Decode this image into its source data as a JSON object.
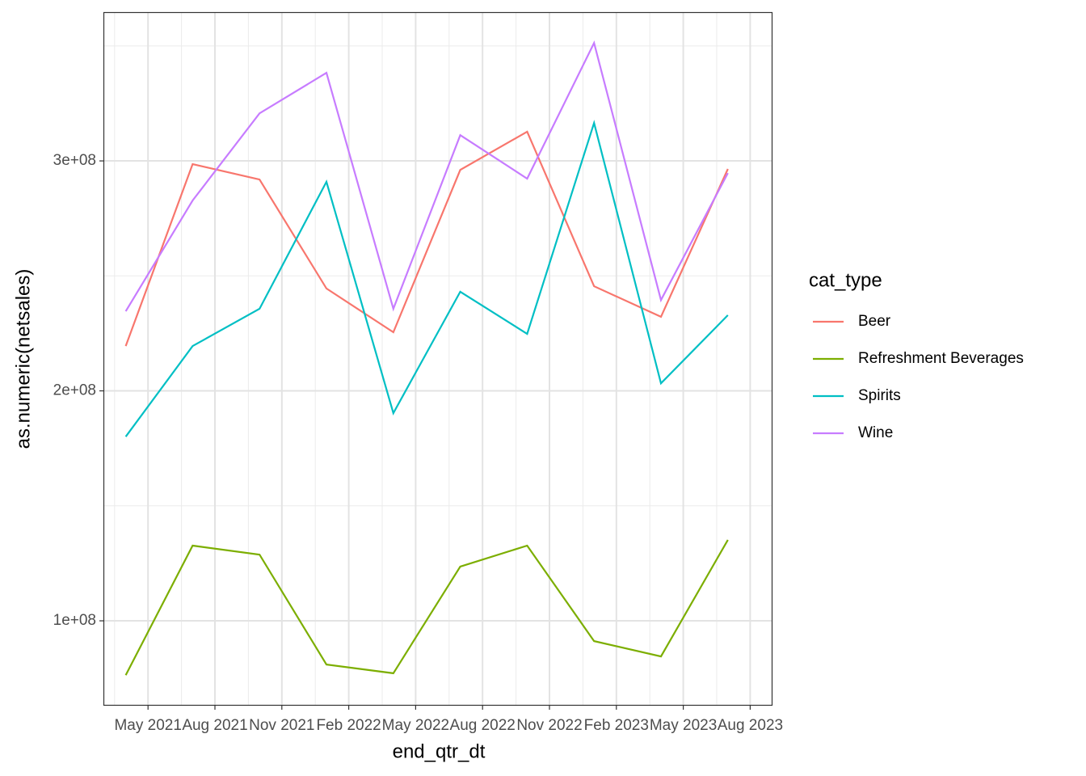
{
  "chart_data": {
    "type": "line",
    "x_label": "end_qtr_dt",
    "y_label": "as.numeric(netsales)",
    "legend_title": "cat_type",
    "legend_position": "right",
    "grid": true,
    "x": [
      "2021-03",
      "2021-06",
      "2021-09",
      "2021-12",
      "2022-03",
      "2022-06",
      "2022-09",
      "2022-12",
      "2023-03",
      "2023-06"
    ],
    "xlim": [
      "2021-03",
      "2023-09"
    ],
    "xticks": [
      {
        "value": "2021-05",
        "label": "May 2021"
      },
      {
        "value": "2021-08",
        "label": "Aug 2021"
      },
      {
        "value": "2021-11",
        "label": "Nov 2021"
      },
      {
        "value": "2022-02",
        "label": "Feb 2022"
      },
      {
        "value": "2022-05",
        "label": "May 2022"
      },
      {
        "value": "2022-08",
        "label": "Aug 2022"
      },
      {
        "value": "2022-11",
        "label": "Nov 2022"
      },
      {
        "value": "2023-02",
        "label": "Feb 2023"
      },
      {
        "value": "2023-05",
        "label": "May 2023"
      },
      {
        "value": "2023-08",
        "label": "Aug 2023"
      }
    ],
    "ylim": [
      63100000,
      364700000
    ],
    "yticks": [
      {
        "value": 100000000,
        "label": "1e+08"
      },
      {
        "value": 200000000,
        "label": "2e+08"
      },
      {
        "value": 300000000,
        "label": "3e+08"
      }
    ],
    "series": [
      {
        "name": "Beer",
        "color": "#F8766D",
        "values": [
          219500000,
          298600000,
          291900000,
          244500000,
          225500000,
          296100000,
          312700000,
          245500000,
          232200000,
          296500000
        ]
      },
      {
        "name": "Refreshment Beverages",
        "color": "#7CAE00",
        "values": [
          76400000,
          132700000,
          128800000,
          81000000,
          77200000,
          123600000,
          132700000,
          91200000,
          84500000,
          135200000
        ]
      },
      {
        "name": "Spirits",
        "color": "#00BFC4",
        "values": [
          180100000,
          219500000,
          235700000,
          290900000,
          190300000,
          243100000,
          224800000,
          316500000,
          203300000,
          232900000
        ]
      },
      {
        "name": "Wine",
        "color": "#C77CFF",
        "values": [
          234600000,
          282800000,
          320700000,
          338300000,
          235700000,
          311200000,
          292300000,
          351300000,
          239500000,
          294700000
        ]
      }
    ]
  }
}
